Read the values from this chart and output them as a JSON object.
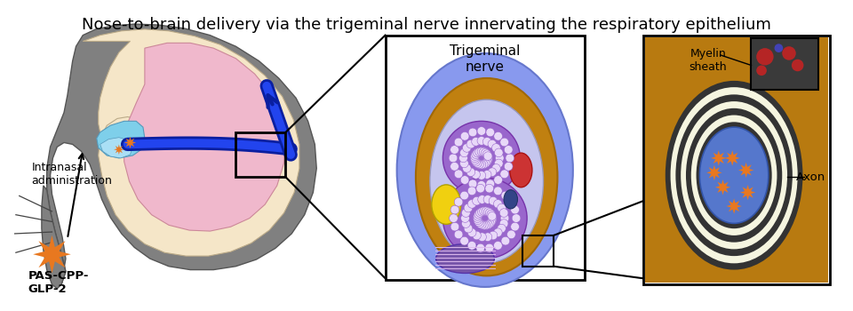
{
  "title": "Nose-to-brain delivery via the trigeminal nerve innervating the respiratory epithelium",
  "title_fontsize": 13,
  "label_intranasal": "Intranasal\nadministration",
  "label_drug": "PAS-CPP-\nGLP-2",
  "label_trigeminal": "Trigeminal\nnerve",
  "label_myelin": "Myelin\nsheath",
  "label_axon": "Axon",
  "bg_color": "#ffffff",
  "skull_gray": "#808080",
  "skull_inner": "#f5e6c8",
  "brain_pink": "#f0b8cc",
  "nasal_blue": "#7ecfea",
  "pathway_blue": "#1530c0",
  "nerve_bg_blue": "#8899ee",
  "nerve_gold": "#c08010",
  "nerve_inner_color": "#c8c8ee",
  "nerve_purple": "#9966cc",
  "nerve_yellow": "#f0d010",
  "axon_gold": "#b87a10",
  "axon_blue": "#5577cc",
  "star_orange": "#e87820",
  "box_color": "#111111",
  "myelin_dark": "#333333",
  "myelin_light": "#f5f5e0",
  "photo_bg": "#444444",
  "photo_red": "#cc2222",
  "photo_blue_blob": "#4444cc"
}
